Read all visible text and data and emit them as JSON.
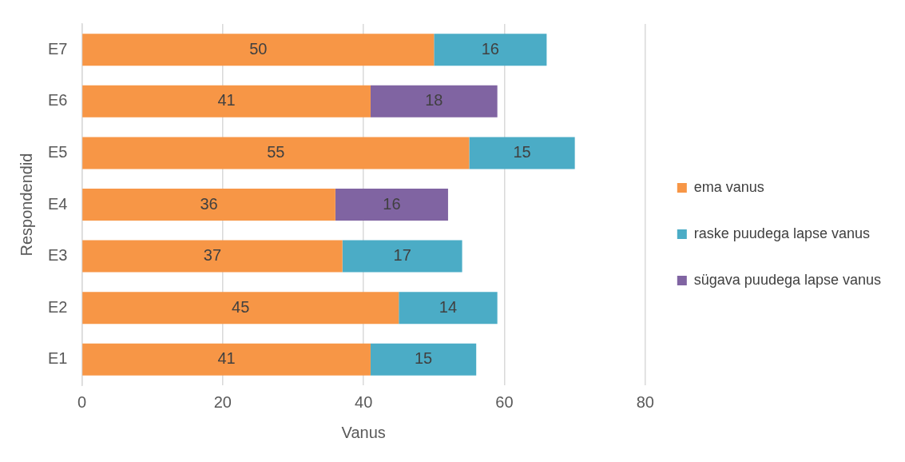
{
  "chart_data": {
    "type": "bar",
    "orientation": "horizontal",
    "stacked": true,
    "categories": [
      "E7",
      "E6",
      "E5",
      "E4",
      "E3",
      "E2",
      "E1"
    ],
    "series": [
      {
        "name": "ema vanus",
        "color": "#f79646",
        "values": [
          50,
          41,
          55,
          36,
          37,
          45,
          41
        ]
      },
      {
        "name": "raske puudega lapse vanus",
        "color": "#4bacc6",
        "values": [
          16,
          null,
          15,
          null,
          17,
          14,
          15
        ]
      },
      {
        "name": "sügava puudega lapse vanus",
        "color": "#8064a2",
        "values": [
          null,
          18,
          null,
          16,
          null,
          null,
          null
        ]
      }
    ],
    "xlim": [
      0,
      80
    ],
    "xticks": [
      0,
      20,
      40,
      60,
      80
    ],
    "xlabel": "Vanus",
    "ylabel": "Respondendid",
    "grid": "x",
    "legend": "right",
    "data_labels": true
  }
}
